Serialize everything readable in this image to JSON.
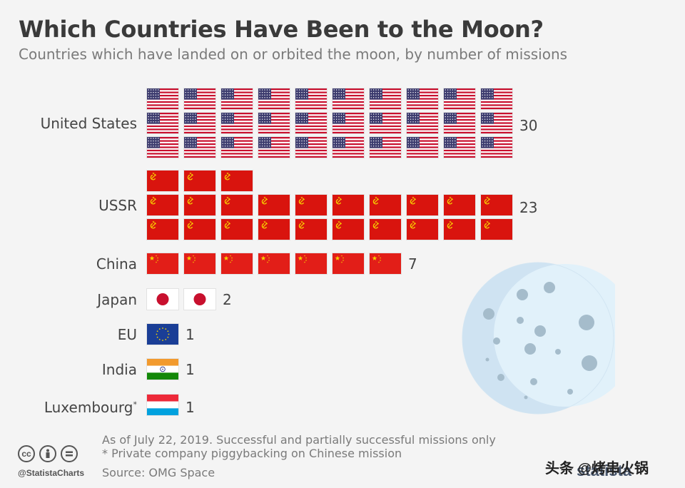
{
  "title": "Which Countries Have Been to the Moon?",
  "subtitle": "Countries which have landed on or orbited the moon, by number of missions",
  "chart_data": {
    "type": "bar",
    "title": "Which Countries Have Been to the Moon?",
    "subtitle": "Countries which have landed on or orbited the moon, by number of missions",
    "categories": [
      "United States",
      "USSR",
      "China",
      "Japan",
      "EU",
      "India",
      "Luxembourg"
    ],
    "category_marks": [
      "",
      "",
      "",
      "",
      "",
      "",
      "*"
    ],
    "values": [
      30,
      23,
      7,
      2,
      1,
      1,
      1
    ],
    "count_labels": [
      "30",
      "23",
      "7",
      "2",
      "1",
      "1",
      "1"
    ],
    "flags": [
      "us-flag-icon",
      "ussr-flag-icon",
      "china-flag-icon",
      "japan-flag-icon",
      "eu-flag-icon",
      "india-flag-icon",
      "luxembourg-flag-icon"
    ],
    "xlabel": "",
    "ylabel": "",
    "grid": false,
    "legend": "none"
  },
  "notes": [
    "As of July 22, 2019. Successful and partially successful missions only",
    "* Private company piggybacking on Chinese mission"
  ],
  "source": "Source: OMG Space",
  "footer": {
    "handle": "@StatistaCharts",
    "cc_icons": [
      "cc-icon",
      "attribution-icon",
      "no-derivatives-icon"
    ],
    "brand": "statista",
    "watermark": "头条 @烤串火锅"
  },
  "colors": {
    "title": "#3a3a3a",
    "subtitle": "#7a7a7a",
    "moon_fill": "#cfe3f2",
    "moon_highlight": "#e1f1fa",
    "crater": "#9fb8c8",
    "ussr_red": "#d9140e",
    "china_red": "#e21e18",
    "flag_yellow": "#f7d300"
  }
}
